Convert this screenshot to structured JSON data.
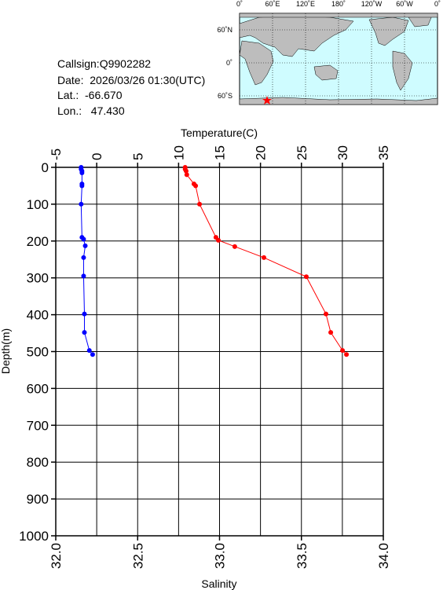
{
  "info": {
    "callsign": "Callsign:Q9902282",
    "date": "Date:  2026/03/26 01:30(UTC)",
    "lat": "Lat.:  -66.670",
    "lon": "Lon.:   47.430",
    "map_lon_labels": [
      "0˚",
      "60˚E",
      "120˚E",
      "180˚",
      "120˚W",
      "60˚W",
      "0˚"
    ],
    "map_lat_labels": [
      "60˚N",
      "0˚",
      "60˚S"
    ]
  },
  "chart_data": {
    "type": "line",
    "x2label": "Temperature(C)",
    "xlabel": "Salinity",
    "ylabel": "Depth(m)",
    "xlim": [
      32.0,
      34.0
    ],
    "xticks": [
      {
        "value": 32,
        "label": "32.0"
      },
      32.5,
      {
        "value": 33,
        "label": "33.0"
      },
      33.5,
      {
        "value": 34,
        "label": "34.0"
      }
    ],
    "x2lim": [
      -5,
      35
    ],
    "x2ticks": [
      -5,
      0,
      5,
      10,
      15,
      20,
      25,
      30,
      35
    ],
    "ylim": [
      0,
      1000
    ],
    "yticks": [
      0,
      100,
      200,
      300,
      400,
      500,
      600,
      700,
      800,
      900,
      1000
    ],
    "grid": true,
    "series": [
      {
        "color": "#0000ff",
        "axis": "x2",
        "depth": [
          0,
          5,
          10,
          15,
          45,
          50,
          100,
          190,
          195,
          213,
          245,
          295,
          398,
          448,
          497,
          508
        ],
        "values": [
          -1.9,
          -1.9,
          -1.8,
          -1.8,
          -1.8,
          -1.8,
          -1.9,
          -1.8,
          -1.6,
          -1.4,
          -1.6,
          -1.6,
          -1.5,
          -1.5,
          -0.9,
          -0.5
        ]
      },
      {
        "color": "#ff0000",
        "axis": "x",
        "depth": [
          0,
          5,
          10,
          20,
          45,
          50,
          100,
          190,
          198,
          215,
          245,
          297,
          398,
          448,
          497,
          508
        ],
        "values": [
          32.79,
          32.79,
          32.796,
          32.8,
          32.844,
          32.854,
          32.878,
          32.978,
          32.993,
          33.093,
          33.271,
          33.53,
          33.65,
          33.679,
          33.751,
          33.775
        ]
      }
    ]
  }
}
